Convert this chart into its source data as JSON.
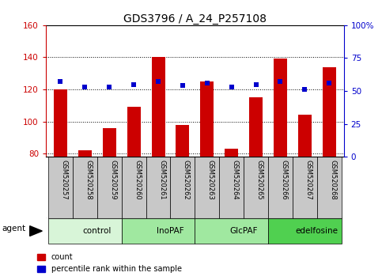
{
  "title": "GDS3796 / A_24_P257108",
  "samples": [
    "GSM520257",
    "GSM520258",
    "GSM520259",
    "GSM520260",
    "GSM520261",
    "GSM520262",
    "GSM520263",
    "GSM520264",
    "GSM520265",
    "GSM520266",
    "GSM520267",
    "GSM520268"
  ],
  "counts": [
    120,
    82,
    96,
    109,
    140,
    98,
    125,
    83,
    115,
    139,
    104,
    134
  ],
  "percentile_ranks": [
    57,
    53,
    53,
    55,
    57,
    54,
    56,
    53,
    55,
    57,
    51,
    56
  ],
  "ylim_left": [
    78,
    160
  ],
  "ylim_right": [
    0,
    100
  ],
  "yticks_left": [
    80,
    100,
    120,
    140,
    160
  ],
  "yticks_right": [
    0,
    25,
    50,
    75,
    100
  ],
  "yticklabels_right": [
    "0",
    "25",
    "50",
    "75",
    "100%"
  ],
  "groups": [
    {
      "label": "control",
      "start": 0,
      "end": 3,
      "color": "#d8f5d8"
    },
    {
      "label": "InoPAF",
      "start": 3,
      "end": 6,
      "color": "#a0e8a0"
    },
    {
      "label": "GlcPAF",
      "start": 6,
      "end": 9,
      "color": "#a0e8a0"
    },
    {
      "label": "edelfosine",
      "start": 9,
      "end": 12,
      "color": "#50d050"
    }
  ],
  "bar_color": "#cc0000",
  "dot_color": "#0000cc",
  "ylabel_left_color": "#cc0000",
  "ylabel_right_color": "#0000cc",
  "bar_width": 0.55,
  "dot_size": 22,
  "tick_label_bg": "#c8c8c8",
  "agent_label": "agent",
  "legend_count_label": "count",
  "legend_pct_label": "percentile rank within the sample"
}
